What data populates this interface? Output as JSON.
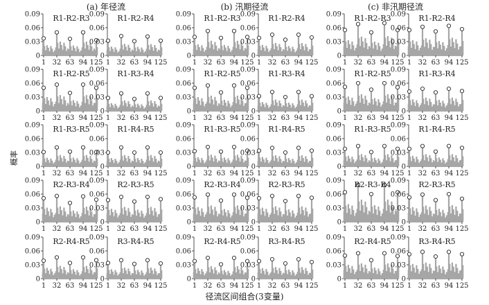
{
  "figure": {
    "ylabel": "概率",
    "xlabel": "径流区间组合(3变量)",
    "group_titles": [
      "(a) 年径流",
      "(b) 汛期径流",
      "(c) 非汛期径流"
    ],
    "x_ticks": [
      "1",
      "32",
      "63",
      "94",
      "125"
    ],
    "colors": {
      "bar": "#a6a6a6",
      "marker_stroke": "#222222",
      "axis": "#222222"
    }
  },
  "chart_data": {
    "type": "bar",
    "description_units": "x = 径流区间组合 index (1–125), y = 概率",
    "x_range": [
      1,
      125
    ],
    "ylim": [
      0,
      0.09
    ],
    "y_ticks": [
      0,
      0.03,
      0.06,
      0.09
    ],
    "y_tick_labels": [
      "0",
      "0.03",
      "0.06",
      "0.09"
    ],
    "markers": "circle at the tallest bar of each peak cluster (x ≈ 1, 32, 63, 94, 125)",
    "combination_labels": [
      [
        "R1-R2-R3",
        "R1-R2-R4"
      ],
      [
        "R1-R2-R5",
        "R1-R3-R4"
      ],
      [
        "R1-R3-R5",
        "R1-R4-R5"
      ],
      [
        "R2-R3-R4",
        "R2-R3-R5"
      ],
      [
        "R2-R4-R5",
        "R3-R4-R5"
      ]
    ],
    "peak_x": [
      1,
      32,
      63,
      94,
      125
    ],
    "panels": [
      [
        {
          "peaks": [
            0.037,
            0.05,
            0.036,
            0.05,
            0.033
          ]
        },
        {
          "peaks": [
            0.032,
            0.042,
            0.031,
            0.041,
            0.032
          ]
        },
        {
          "peaks": [
            0.04,
            0.053,
            0.038,
            0.053,
            0.04
          ]
        },
        {
          "peaks": [
            0.038,
            0.045,
            0.034,
            0.045,
            0.039
          ]
        },
        {
          "peaks": [
            0.055,
            0.068,
            0.05,
            0.07,
            0.055
          ]
        },
        {
          "peaks": [
            0.055,
            0.062,
            0.052,
            0.064,
            0.057
          ]
        }
      ],
      [
        {
          "peaks": [
            0.05,
            0.057,
            0.039,
            0.057,
            0.05
          ]
        },
        {
          "peaks": [
            0.028,
            0.038,
            0.026,
            0.038,
            0.028
          ]
        },
        {
          "peaks": [
            0.05,
            0.055,
            0.04,
            0.055,
            0.05
          ]
        },
        {
          "peaks": [
            0.032,
            0.041,
            0.03,
            0.041,
            0.032
          ]
        },
        {
          "peaks": [
            0.052,
            0.06,
            0.046,
            0.06,
            0.051
          ]
        },
        {
          "peaks": [
            0.042,
            0.048,
            0.04,
            0.048,
            0.043
          ]
        }
      ],
      [
        {
          "peaks": [
            0.031,
            0.041,
            0.032,
            0.041,
            0.031
          ]
        },
        {
          "peaks": [
            0.03,
            0.041,
            0.03,
            0.041,
            0.03
          ]
        },
        {
          "peaks": [
            0.033,
            0.042,
            0.032,
            0.042,
            0.034
          ]
        },
        {
          "peaks": [
            0.034,
            0.04,
            0.03,
            0.04,
            0.034
          ]
        },
        {
          "peaks": [
            0.038,
            0.044,
            0.031,
            0.044,
            0.038
          ]
        },
        {
          "peaks": [
            0.038,
            0.044,
            0.032,
            0.044,
            0.04
          ]
        }
      ],
      [
        {
          "peaks": [
            0.051,
            0.056,
            0.041,
            0.055,
            0.048
          ]
        },
        {
          "peaks": [
            0.047,
            0.054,
            0.044,
            0.054,
            0.049
          ]
        },
        {
          "peaks": [
            0.053,
            0.059,
            0.046,
            0.059,
            0.052
          ]
        },
        {
          "peaks": [
            0.051,
            0.056,
            0.045,
            0.056,
            0.052
          ]
        },
        {
          "peaks": [
            0.064,
            0.08,
            0.06,
            0.08,
            0.064
          ]
        },
        {
          "peaks": [
            0.053,
            0.059,
            0.047,
            0.06,
            0.05
          ]
        }
      ],
      [
        {
          "peaks": [
            0.039,
            0.046,
            0.034,
            0.046,
            0.04
          ]
        },
        {
          "peaks": [
            0.034,
            0.04,
            0.032,
            0.04,
            0.033
          ]
        },
        {
          "peaks": [
            0.038,
            0.045,
            0.031,
            0.045,
            0.038
          ]
        },
        {
          "peaks": [
            0.038,
            0.042,
            0.033,
            0.042,
            0.036
          ]
        },
        {
          "peaks": [
            0.05,
            0.055,
            0.04,
            0.055,
            0.049
          ]
        },
        {
          "peaks": [
            0.053,
            0.058,
            0.048,
            0.058,
            0.053
          ]
        }
      ]
    ]
  }
}
